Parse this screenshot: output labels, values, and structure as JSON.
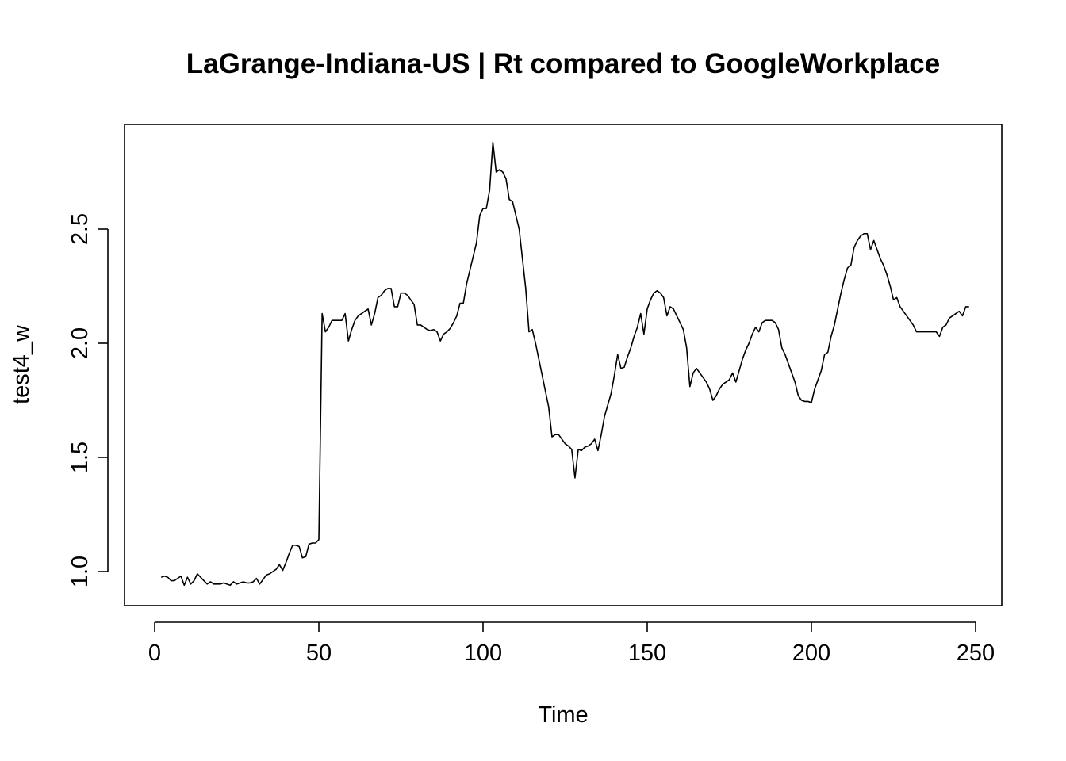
{
  "chart_data": {
    "type": "line",
    "title": "LaGrange-Indiana-US | Rt compared to GoogleWorkplace",
    "xlabel": "Time",
    "ylabel": "test4_w",
    "xlim": [
      1,
      248
    ],
    "ylim": [
      0.86,
      2.97
    ],
    "x_ticks": [
      0,
      50,
      100,
      150,
      200,
      250
    ],
    "x_tick_labels": [
      "0",
      "50",
      "100",
      "150",
      "200",
      "250"
    ],
    "y_ticks": [
      1.0,
      1.5,
      2.0,
      2.5
    ],
    "y_tick_labels": [
      "1.0",
      "1.5",
      "2.0",
      "2.5"
    ],
    "grid": false,
    "legend": "none",
    "series": [
      {
        "color": "#000000",
        "x": [
          2,
          3,
          4,
          5,
          6,
          7,
          8,
          9,
          10,
          11,
          12,
          13,
          14,
          15,
          16,
          17,
          18,
          19,
          20,
          21,
          22,
          23,
          24,
          25,
          26,
          27,
          28,
          29,
          30,
          31,
          32,
          33,
          34,
          35,
          36,
          37,
          38,
          39,
          40,
          41,
          42,
          43,
          44,
          45,
          46,
          47,
          48,
          49,
          50,
          51,
          52,
          53,
          54,
          55,
          56,
          57,
          58,
          59,
          60,
          61,
          62,
          63,
          64,
          65,
          66,
          67,
          68,
          69,
          70,
          71,
          72,
          73,
          74,
          75,
          76,
          77,
          78,
          79,
          80,
          81,
          82,
          83,
          84,
          85,
          86,
          87,
          88,
          89,
          90,
          91,
          92,
          93,
          94,
          95,
          96,
          97,
          98,
          99,
          100,
          101,
          102,
          103,
          104,
          105,
          106,
          107,
          108,
          109,
          110,
          111,
          112,
          113,
          114,
          115,
          116,
          117,
          118,
          119,
          120,
          121,
          122,
          123,
          124,
          125,
          126,
          127,
          128,
          129,
          130,
          131,
          132,
          133,
          134,
          135,
          136,
          137,
          138,
          139,
          140,
          141,
          142,
          143,
          144,
          145,
          146,
          147,
          148,
          149,
          150,
          151,
          152,
          153,
          154,
          155,
          156,
          157,
          158,
          159,
          160,
          161,
          162,
          163,
          164,
          165,
          166,
          167,
          168,
          169,
          170,
          171,
          172,
          173,
          174,
          175,
          176,
          177,
          178,
          179,
          180,
          181,
          182,
          183,
          184,
          185,
          186,
          187,
          188,
          189,
          190,
          191,
          192,
          193,
          194,
          195,
          196,
          197,
          198,
          199,
          200,
          201,
          202,
          203,
          204,
          205,
          206,
          207,
          208,
          209,
          210,
          211,
          212,
          213,
          214,
          215,
          216,
          217,
          218,
          219,
          220,
          221,
          222,
          223,
          224,
          225,
          226,
          227,
          228,
          229,
          230,
          231,
          232,
          233,
          234,
          235,
          236,
          237,
          238,
          239,
          240,
          241,
          242,
          243,
          244,
          245,
          246,
          247,
          248
        ],
        "values": [
          0.975,
          0.98,
          0.975,
          0.96,
          0.96,
          0.97,
          0.98,
          0.94,
          0.975,
          0.945,
          0.96,
          0.99,
          0.975,
          0.96,
          0.945,
          0.955,
          0.945,
          0.945,
          0.945,
          0.95,
          0.945,
          0.94,
          0.955,
          0.945,
          0.95,
          0.955,
          0.95,
          0.95,
          0.955,
          0.97,
          0.945,
          0.965,
          0.985,
          0.99,
          1.0,
          1.01,
          1.03,
          1.005,
          1.04,
          1.08,
          1.115,
          1.115,
          1.11,
          1.06,
          1.065,
          1.12,
          1.125,
          1.125,
          1.14,
          2.13,
          2.05,
          2.07,
          2.1,
          2.1,
          2.1,
          2.1,
          2.13,
          2.01,
          2.06,
          2.1,
          2.12,
          2.13,
          2.14,
          2.15,
          2.08,
          2.13,
          2.2,
          2.21,
          2.23,
          2.24,
          2.24,
          2.16,
          2.16,
          2.22,
          2.22,
          2.21,
          2.19,
          2.17,
          2.08,
          2.08,
          2.07,
          2.06,
          2.055,
          2.06,
          2.05,
          2.01,
          2.04,
          2.05,
          2.065,
          2.09,
          2.12,
          2.175,
          2.175,
          2.26,
          2.32,
          2.38,
          2.44,
          2.56,
          2.59,
          2.59,
          2.67,
          2.88,
          2.75,
          2.76,
          2.75,
          2.72,
          2.63,
          2.62,
          2.56,
          2.5,
          2.37,
          2.24,
          2.05,
          2.06,
          2.0,
          1.93,
          1.86,
          1.79,
          1.72,
          1.59,
          1.6,
          1.6,
          1.58,
          1.56,
          1.55,
          1.535,
          1.41,
          1.535,
          1.53,
          1.545,
          1.55,
          1.56,
          1.58,
          1.53,
          1.6,
          1.68,
          1.73,
          1.78,
          1.86,
          1.95,
          1.89,
          1.895,
          1.94,
          1.98,
          2.03,
          2.07,
          2.13,
          2.04,
          2.15,
          2.19,
          2.22,
          2.23,
          2.22,
          2.2,
          2.12,
          2.16,
          2.15,
          2.12,
          2.09,
          2.06,
          1.98,
          1.81,
          1.87,
          1.89,
          1.87,
          1.85,
          1.83,
          1.8,
          1.75,
          1.77,
          1.8,
          1.82,
          1.83,
          1.84,
          1.87,
          1.83,
          1.88,
          1.93,
          1.97,
          2.0,
          2.04,
          2.07,
          2.05,
          2.09,
          2.1,
          2.1,
          2.1,
          2.09,
          2.06,
          1.98,
          1.95,
          1.91,
          1.87,
          1.83,
          1.77,
          1.75,
          1.745,
          1.745,
          1.74,
          1.8,
          1.84,
          1.88,
          1.95,
          1.96,
          2.03,
          2.08,
          2.15,
          2.22,
          2.28,
          2.33,
          2.34,
          2.42,
          2.45,
          2.47,
          2.48,
          2.48,
          2.41,
          2.45,
          2.41,
          2.37,
          2.34,
          2.3,
          2.25,
          2.19,
          2.2,
          2.16,
          2.14,
          2.12,
          2.1,
          2.08,
          2.05,
          2.05,
          2.05,
          2.05,
          2.05,
          2.05,
          2.05,
          2.03,
          2.07,
          2.08,
          2.11,
          2.12,
          2.13,
          2.14,
          2.12,
          2.16,
          2.16
        ]
      }
    ]
  }
}
